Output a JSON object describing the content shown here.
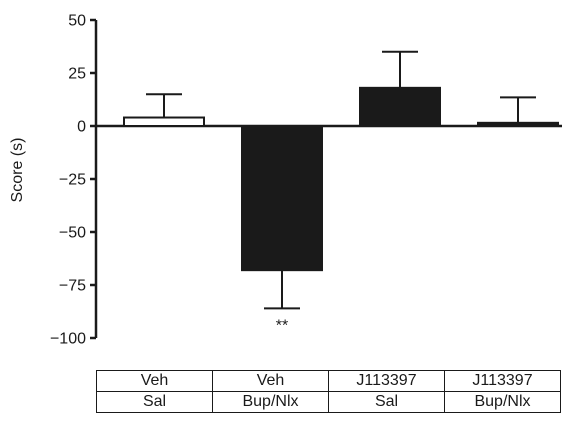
{
  "chart_data": {
    "type": "bar",
    "categories": [
      "Veh / Sal",
      "Veh / Bup/Nlx",
      "J113397 / Sal",
      "J113397 / Bup/Nlx"
    ],
    "values": [
      4,
      -68,
      18,
      1.5
    ],
    "error": [
      11,
      18,
      17,
      12
    ],
    "bar_fill": [
      "#ffffff",
      "#1a1a1a",
      "#1a1a1a",
      "#1a1a1a"
    ],
    "ylabel": "Score (s)",
    "ylim": [
      -100,
      50
    ],
    "yticks": [
      50,
      25,
      0,
      -25,
      -50,
      -75,
      -100
    ],
    "ytick_labels": [
      "50",
      "25",
      "0",
      "−25",
      "−50",
      "−75",
      "−100"
    ],
    "annotations": [
      {
        "bar": 1,
        "text": "**"
      }
    ],
    "conditions": {
      "row1": [
        "Veh",
        "Veh",
        "J113397",
        "J113397"
      ],
      "row2": [
        "Sal",
        "Bup/Nlx",
        "Sal",
        "Bup/Nlx"
      ]
    },
    "grid": false,
    "legend": "none"
  }
}
